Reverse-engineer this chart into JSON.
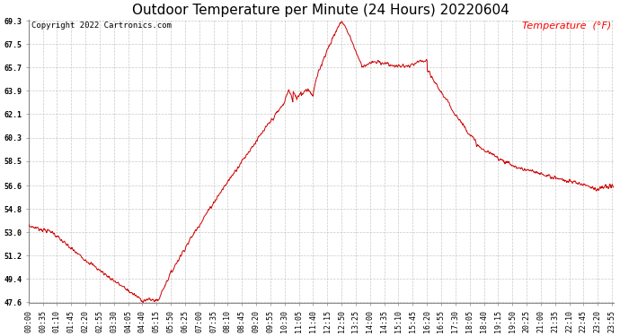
{
  "title": "Outdoor Temperature per Minute (24 Hours) 20220604",
  "copyright_text": "Copyright 2022 Cartronics.com",
  "legend_label": "Temperature  (°F)",
  "line_color": "#cc0000",
  "background_color": "#ffffff",
  "grid_color": "#bbbbbb",
  "ylim": [
    47.6,
    69.3
  ],
  "yticks": [
    47.6,
    49.4,
    51.2,
    53.0,
    54.8,
    56.6,
    58.5,
    60.3,
    62.1,
    63.9,
    65.7,
    67.5,
    69.3
  ],
  "title_fontsize": 11,
  "tick_fontsize": 6,
  "annotation_fontsize": 6.5,
  "legend_fontsize": 8,
  "figsize": [
    6.9,
    3.75
  ],
  "dpi": 100
}
